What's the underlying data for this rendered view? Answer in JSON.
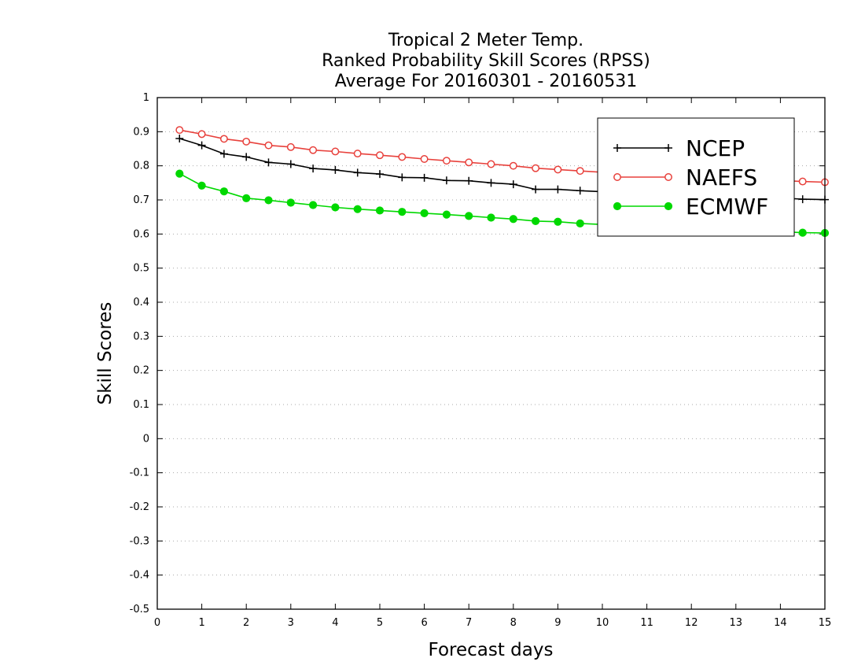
{
  "chart_data": {
    "type": "line",
    "title_lines": [
      "Tropical 2 Meter Temp.",
      "Ranked Probability Skill Scores (RPSS)",
      "Average For 20160301 - 20160531"
    ],
    "xlabel": "Forecast days",
    "ylabel": "Skill Scores",
    "xlim": [
      0,
      15
    ],
    "ylim": [
      -0.5,
      1
    ],
    "x_ticks": [
      "0",
      "1",
      "2",
      "3",
      "4",
      "5",
      "6",
      "7",
      "8",
      "9",
      "10",
      "11",
      "12",
      "13",
      "14",
      "15"
    ],
    "y_ticks": [
      "1",
      "0.9",
      "0.8",
      "0.7",
      "0.6",
      "0.5",
      "0.4",
      "0.3",
      "0.2",
      "0.1",
      "0",
      "-0.1",
      "-0.2",
      "-0.3",
      "-0.4",
      "-0.5"
    ],
    "grid": "horizontal dotted",
    "legend_position": "top-right",
    "x": [
      0.5,
      1,
      1.5,
      2,
      2.5,
      3,
      3.5,
      4,
      4.5,
      5,
      5.5,
      6,
      6.5,
      7,
      7.5,
      8,
      8.5,
      9,
      9.5,
      10,
      10.5,
      11,
      11.5,
      12,
      12.5,
      13,
      13.5,
      14,
      14.5,
      15
    ],
    "series": [
      {
        "name": "NCEP",
        "color": "#000000",
        "marker": "plus",
        "values": [
          0.88,
          0.86,
          0.835,
          0.826,
          0.81,
          0.805,
          0.792,
          0.788,
          0.78,
          0.776,
          0.766,
          0.765,
          0.757,
          0.756,
          0.75,
          0.746,
          0.731,
          0.731,
          0.727,
          0.724,
          0.722,
          0.72,
          0.718,
          0.715,
          0.713,
          0.71,
          0.708,
          0.706,
          0.702,
          0.701
        ]
      },
      {
        "name": "NAEFS",
        "color": "#e8413c",
        "marker": "open-circle",
        "values": [
          0.905,
          0.893,
          0.879,
          0.871,
          0.86,
          0.855,
          0.846,
          0.842,
          0.836,
          0.831,
          0.826,
          0.82,
          0.815,
          0.81,
          0.805,
          0.8,
          0.793,
          0.789,
          0.785,
          0.781,
          0.778,
          0.774,
          0.771,
          0.768,
          0.765,
          0.762,
          0.76,
          0.757,
          0.754,
          0.752
        ]
      },
      {
        "name": "ECMWF",
        "color": "#00d800",
        "marker": "filled-circle",
        "values": [
          0.777,
          0.742,
          0.725,
          0.705,
          0.699,
          0.692,
          0.685,
          0.678,
          0.673,
          0.669,
          0.665,
          0.661,
          0.657,
          0.653,
          0.648,
          0.644,
          0.638,
          0.636,
          0.631,
          0.628,
          0.625,
          0.622,
          0.619,
          0.616,
          0.613,
          0.611,
          0.609,
          0.607,
          0.604,
          0.603
        ]
      }
    ]
  }
}
